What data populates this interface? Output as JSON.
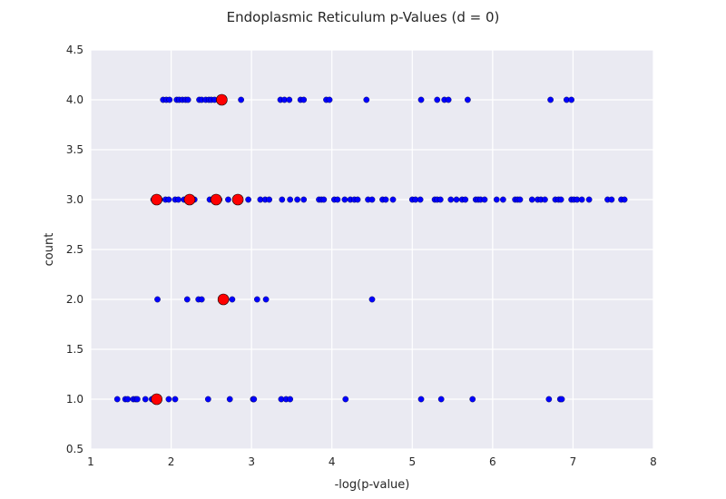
{
  "chart_data": {
    "type": "scatter",
    "title": "Endoplasmic Reticulum p-Values (d = 0)",
    "xlabel": "-log(p-value)",
    "ylabel": "count",
    "xlim": [
      1,
      8
    ],
    "ylim": [
      0.5,
      4.5
    ],
    "x_ticks": [
      "1",
      "2",
      "3",
      "4",
      "5",
      "6",
      "7",
      "8"
    ],
    "y_ticks": [
      "0.5",
      "1.0",
      "1.5",
      "2.0",
      "2.5",
      "3.0",
      "3.5",
      "4.0",
      "4.5"
    ],
    "grid": true,
    "background_color": "#eaeaf2",
    "grid_color": "#ffffff",
    "series": [
      {
        "color": "#0000ff",
        "marker_size": "small",
        "points": [
          {
            "x": 1.33,
            "y": 1.0
          },
          {
            "x": 1.43,
            "y": 1.0
          },
          {
            "x": 1.46,
            "y": 1.0
          },
          {
            "x": 1.53,
            "y": 1.0
          },
          {
            "x": 1.56,
            "y": 1.0
          },
          {
            "x": 1.58,
            "y": 1.0
          },
          {
            "x": 1.68,
            "y": 1.0
          },
          {
            "x": 1.76,
            "y": 1.0
          },
          {
            "x": 1.97,
            "y": 1.0
          },
          {
            "x": 2.05,
            "y": 1.0
          },
          {
            "x": 2.46,
            "y": 1.0
          },
          {
            "x": 2.73,
            "y": 1.0
          },
          {
            "x": 3.02,
            "y": 1.0
          },
          {
            "x": 3.03,
            "y": 1.0
          },
          {
            "x": 3.37,
            "y": 1.0
          },
          {
            "x": 3.43,
            "y": 1.0
          },
          {
            "x": 3.48,
            "y": 1.0
          },
          {
            "x": 4.17,
            "y": 1.0
          },
          {
            "x": 5.11,
            "y": 1.0
          },
          {
            "x": 5.36,
            "y": 1.0
          },
          {
            "x": 5.75,
            "y": 1.0
          },
          {
            "x": 6.7,
            "y": 1.0
          },
          {
            "x": 6.84,
            "y": 1.0
          },
          {
            "x": 6.86,
            "y": 1.0
          },
          {
            "x": 1.83,
            "y": 2.0
          },
          {
            "x": 2.2,
            "y": 2.0
          },
          {
            "x": 2.34,
            "y": 2.0
          },
          {
            "x": 2.38,
            "y": 2.0
          },
          {
            "x": 2.76,
            "y": 2.0
          },
          {
            "x": 3.07,
            "y": 2.0
          },
          {
            "x": 3.18,
            "y": 2.0
          },
          {
            "x": 4.5,
            "y": 2.0
          },
          {
            "x": 1.78,
            "y": 3.0
          },
          {
            "x": 1.86,
            "y": 3.0
          },
          {
            "x": 1.93,
            "y": 3.0
          },
          {
            "x": 1.97,
            "y": 3.0
          },
          {
            "x": 2.05,
            "y": 3.0
          },
          {
            "x": 2.09,
            "y": 3.0
          },
          {
            "x": 2.16,
            "y": 3.0
          },
          {
            "x": 2.29,
            "y": 3.0
          },
          {
            "x": 2.48,
            "y": 3.0
          },
          {
            "x": 2.52,
            "y": 3.0
          },
          {
            "x": 2.6,
            "y": 3.0
          },
          {
            "x": 2.71,
            "y": 3.0
          },
          {
            "x": 2.96,
            "y": 3.0
          },
          {
            "x": 3.11,
            "y": 3.0
          },
          {
            "x": 3.17,
            "y": 3.0
          },
          {
            "x": 3.22,
            "y": 3.0
          },
          {
            "x": 3.38,
            "y": 3.0
          },
          {
            "x": 3.48,
            "y": 3.0
          },
          {
            "x": 3.57,
            "y": 3.0
          },
          {
            "x": 3.65,
            "y": 3.0
          },
          {
            "x": 3.84,
            "y": 3.0
          },
          {
            "x": 3.87,
            "y": 3.0
          },
          {
            "x": 3.9,
            "y": 3.0
          },
          {
            "x": 4.03,
            "y": 3.0
          },
          {
            "x": 4.07,
            "y": 3.0
          },
          {
            "x": 4.16,
            "y": 3.0
          },
          {
            "x": 4.23,
            "y": 3.0
          },
          {
            "x": 4.28,
            "y": 3.0
          },
          {
            "x": 4.32,
            "y": 3.0
          },
          {
            "x": 4.45,
            "y": 3.0
          },
          {
            "x": 4.5,
            "y": 3.0
          },
          {
            "x": 4.63,
            "y": 3.0
          },
          {
            "x": 4.67,
            "y": 3.0
          },
          {
            "x": 4.76,
            "y": 3.0
          },
          {
            "x": 5.0,
            "y": 3.0
          },
          {
            "x": 5.04,
            "y": 3.0
          },
          {
            "x": 5.1,
            "y": 3.0
          },
          {
            "x": 5.28,
            "y": 3.0
          },
          {
            "x": 5.31,
            "y": 3.0
          },
          {
            "x": 5.35,
            "y": 3.0
          },
          {
            "x": 5.48,
            "y": 3.0
          },
          {
            "x": 5.55,
            "y": 3.0
          },
          {
            "x": 5.62,
            "y": 3.0
          },
          {
            "x": 5.66,
            "y": 3.0
          },
          {
            "x": 5.79,
            "y": 3.0
          },
          {
            "x": 5.82,
            "y": 3.0
          },
          {
            "x": 5.85,
            "y": 3.0
          },
          {
            "x": 5.9,
            "y": 3.0
          },
          {
            "x": 6.05,
            "y": 3.0
          },
          {
            "x": 6.13,
            "y": 3.0
          },
          {
            "x": 6.28,
            "y": 3.0
          },
          {
            "x": 6.31,
            "y": 3.0
          },
          {
            "x": 6.34,
            "y": 3.0
          },
          {
            "x": 6.49,
            "y": 3.0
          },
          {
            "x": 6.56,
            "y": 3.0
          },
          {
            "x": 6.6,
            "y": 3.0
          },
          {
            "x": 6.65,
            "y": 3.0
          },
          {
            "x": 6.78,
            "y": 3.0
          },
          {
            "x": 6.82,
            "y": 3.0
          },
          {
            "x": 6.85,
            "y": 3.0
          },
          {
            "x": 6.98,
            "y": 3.0
          },
          {
            "x": 7.01,
            "y": 3.0
          },
          {
            "x": 7.05,
            "y": 3.0
          },
          {
            "x": 7.11,
            "y": 3.0
          },
          {
            "x": 7.2,
            "y": 3.0
          },
          {
            "x": 7.43,
            "y": 3.0
          },
          {
            "x": 7.48,
            "y": 3.0
          },
          {
            "x": 7.6,
            "y": 3.0
          },
          {
            "x": 7.64,
            "y": 3.0
          },
          {
            "x": 1.9,
            "y": 4.0
          },
          {
            "x": 1.94,
            "y": 4.0
          },
          {
            "x": 1.98,
            "y": 4.0
          },
          {
            "x": 2.07,
            "y": 4.0
          },
          {
            "x": 2.1,
            "y": 4.0
          },
          {
            "x": 2.14,
            "y": 4.0
          },
          {
            "x": 2.18,
            "y": 4.0
          },
          {
            "x": 2.21,
            "y": 4.0
          },
          {
            "x": 2.35,
            "y": 4.0
          },
          {
            "x": 2.38,
            "y": 4.0
          },
          {
            "x": 2.43,
            "y": 4.0
          },
          {
            "x": 2.47,
            "y": 4.0
          },
          {
            "x": 2.5,
            "y": 4.0
          },
          {
            "x": 2.54,
            "y": 4.0
          },
          {
            "x": 2.87,
            "y": 4.0
          },
          {
            "x": 3.36,
            "y": 4.0
          },
          {
            "x": 3.41,
            "y": 4.0
          },
          {
            "x": 3.47,
            "y": 4.0
          },
          {
            "x": 3.61,
            "y": 4.0
          },
          {
            "x": 3.65,
            "y": 4.0
          },
          {
            "x": 3.93,
            "y": 4.0
          },
          {
            "x": 3.97,
            "y": 4.0
          },
          {
            "x": 4.43,
            "y": 4.0
          },
          {
            "x": 5.11,
            "y": 4.0
          },
          {
            "x": 5.31,
            "y": 4.0
          },
          {
            "x": 5.4,
            "y": 4.0
          },
          {
            "x": 5.45,
            "y": 4.0
          },
          {
            "x": 5.69,
            "y": 4.0
          },
          {
            "x": 6.72,
            "y": 4.0
          },
          {
            "x": 6.92,
            "y": 4.0
          },
          {
            "x": 6.98,
            "y": 4.0
          }
        ]
      },
      {
        "color": "#ff0000",
        "marker_size": "large",
        "points": [
          {
            "x": 1.82,
            "y": 1.0
          },
          {
            "x": 2.65,
            "y": 2.0
          },
          {
            "x": 1.82,
            "y": 3.0
          },
          {
            "x": 2.23,
            "y": 3.0
          },
          {
            "x": 2.56,
            "y": 3.0
          },
          {
            "x": 2.83,
            "y": 3.0
          },
          {
            "x": 2.63,
            "y": 4.0
          }
        ]
      }
    ]
  }
}
